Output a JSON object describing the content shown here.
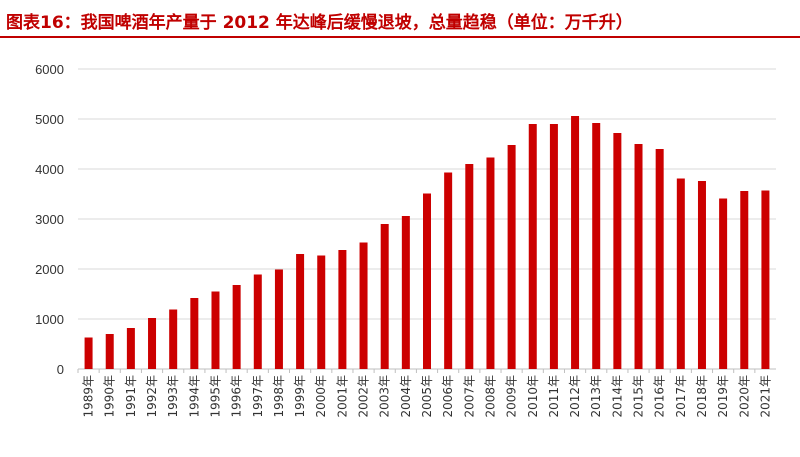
{
  "title": "图表16：我国啤酒年产量于 2012 年达峰后缓慢退坡，总量趋稳（单位：万千升）",
  "colors": {
    "bar": "#cc0000",
    "grid": "#d9d9d9",
    "title": "#c00000",
    "axis": "#bfbfbf"
  },
  "chart_data": {
    "type": "bar",
    "title": "图表16：我国啤酒年产量于 2012 年达峰后缓慢退坡，总量趋稳（单位：万千升）",
    "xlabel": "",
    "ylabel": "",
    "ylim": [
      0,
      6000
    ],
    "yticks": [
      0,
      1000,
      2000,
      3000,
      4000,
      5000,
      6000
    ],
    "grid": true,
    "legend": "none",
    "categories": [
      "1989年",
      "1990年",
      "1991年",
      "1992年",
      "1993年",
      "1994年",
      "1995年",
      "1996年",
      "1997年",
      "1998年",
      "1999年",
      "2000年",
      "2001年",
      "2002年",
      "2003年",
      "2004年",
      "2005年",
      "2006年",
      "2007年",
      "2008年",
      "2009年",
      "2010年",
      "2011年",
      "2012年",
      "2013年",
      "2014年",
      "2015年",
      "2016年",
      "2017年",
      "2018年",
      "2019年",
      "2020年",
      "2021年"
    ],
    "values": [
      630,
      700,
      820,
      1020,
      1190,
      1420,
      1550,
      1680,
      1890,
      1990,
      2300,
      2270,
      2380,
      2530,
      2900,
      3060,
      3510,
      3930,
      4100,
      4230,
      4480,
      4900,
      4900,
      5060,
      4920,
      4720,
      4500,
      4400,
      3810,
      3760,
      3410,
      3560,
      3570
    ]
  }
}
